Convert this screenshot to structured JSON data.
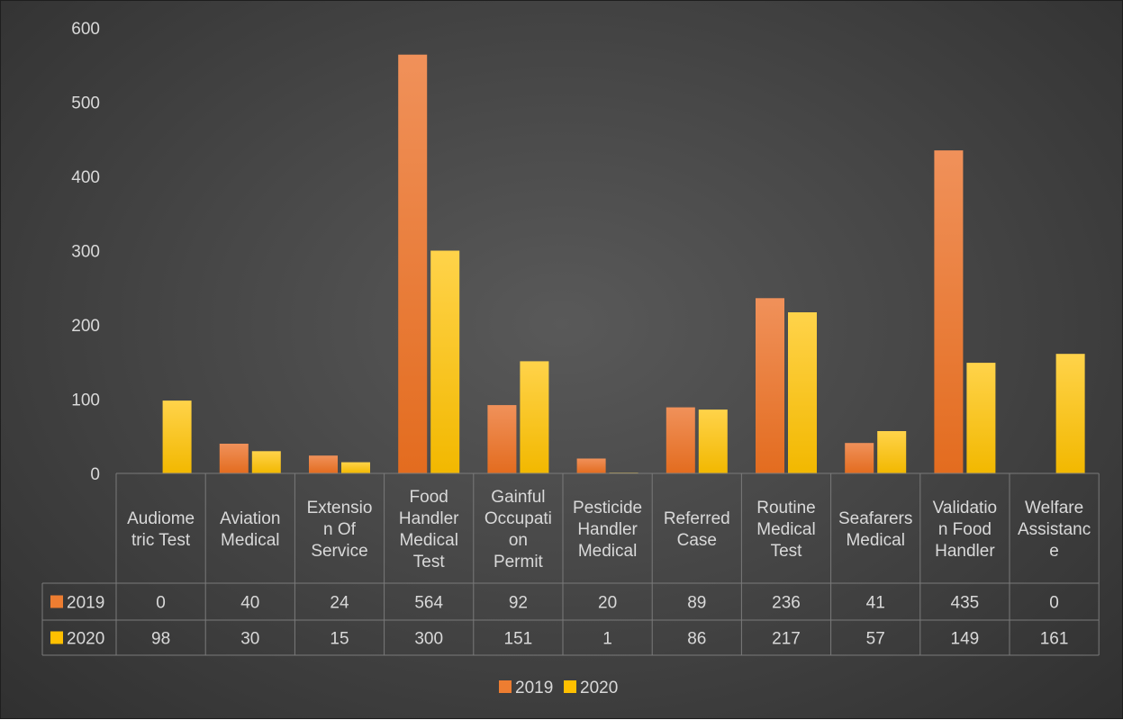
{
  "chart_data": {
    "type": "bar",
    "title": "",
    "xlabel": "",
    "ylabel": "",
    "ylim": [
      0,
      600
    ],
    "yticks": [
      0,
      100,
      200,
      300,
      400,
      500,
      600
    ],
    "grid": false,
    "legend_position": "bottom",
    "data_table": true,
    "categories": [
      "Audiometric Test",
      "Aviation Medical",
      "Extension Of Service",
      "Food Handler Medical Test",
      "Gainful Occupation Permit",
      "Pesticide Handler Medical",
      "Referred Case",
      "Routine Medical Test",
      "Seafarers Medical",
      "Validation Food Handler",
      "Welfare Assistance"
    ],
    "category_label_lines": [
      [
        "Audiome",
        "tric Test"
      ],
      [
        "Aviation",
        "Medical"
      ],
      [
        "Extensio",
        "n Of",
        "Service"
      ],
      [
        "Food",
        "Handler",
        "Medical",
        "Test"
      ],
      [
        "Gainful",
        "Occupati",
        "on",
        "Permit"
      ],
      [
        "Pesticide",
        "Handler",
        "Medical"
      ],
      [
        "Referred",
        "Case"
      ],
      [
        "Routine",
        "Medical",
        "Test"
      ],
      [
        "Seafarers",
        "Medical"
      ],
      [
        "Validatio",
        "n Food",
        "Handler"
      ],
      [
        "Welfare",
        "Assistanc",
        "e"
      ]
    ],
    "series": [
      {
        "name": "2019",
        "color": "#ED7D31",
        "values": [
          0,
          40,
          24,
          564,
          92,
          20,
          89,
          236,
          41,
          435,
          0
        ]
      },
      {
        "name": "2020",
        "color": "#FFC000",
        "values": [
          98,
          30,
          15,
          300,
          151,
          1,
          86,
          217,
          57,
          149,
          161
        ]
      }
    ]
  }
}
